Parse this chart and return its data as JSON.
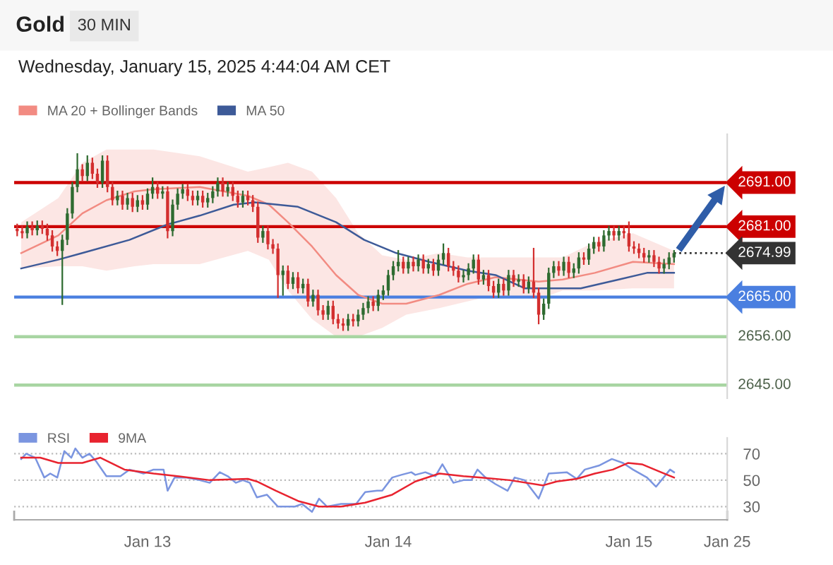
{
  "chart_data": [
    {
      "type": "candlestick",
      "title": "Gold",
      "subtitle": "Wednesday, January 15, 2025 4:44:04 AM CET",
      "annotations": [
        "30 MIN"
      ],
      "x": [
        "2025-01-12T11:00",
        "2025-01-12T11:30",
        "2025-01-12T12:00",
        "2025-01-12T12:30",
        "2025-01-12T13:00",
        "2025-01-12T13:30",
        "2025-01-12T14:00",
        "2025-01-12T14:30",
        "2025-01-12T15:00",
        "2025-01-12T15:30",
        "2025-01-12T16:00",
        "2025-01-12T16:30",
        "2025-01-12T17:00",
        "2025-01-12T17:30",
        "2025-01-12T18:00",
        "2025-01-12T18:30",
        "2025-01-12T19:00",
        "2025-01-12T19:30",
        "2025-01-12T20:00",
        "2025-01-12T20:30",
        "2025-01-12T21:00",
        "2025-01-12T21:30",
        "2025-01-12T22:00",
        "2025-01-12T22:30",
        "2025-01-12T23:00",
        "2025-01-12T23:30",
        "2025-01-13T00:00",
        "2025-01-13T00:30",
        "2025-01-13T01:00",
        "2025-01-13T01:30",
        "2025-01-13T02:00",
        "2025-01-13T02:30",
        "2025-01-13T03:00",
        "2025-01-13T03:30",
        "2025-01-13T04:00",
        "2025-01-13T04:30",
        "2025-01-13T05:00",
        "2025-01-13T05:30",
        "2025-01-13T06:00",
        "2025-01-13T06:30",
        "2025-01-13T07:00",
        "2025-01-13T07:30",
        "2025-01-13T08:00",
        "2025-01-13T08:30",
        "2025-01-13T09:00",
        "2025-01-13T09:30",
        "2025-01-13T10:00",
        "2025-01-13T10:30",
        "2025-01-13T11:00",
        "2025-01-13T11:30",
        "2025-01-13T12:00",
        "2025-01-13T12:30",
        "2025-01-13T13:00",
        "2025-01-13T13:30",
        "2025-01-13T14:00",
        "2025-01-13T14:30",
        "2025-01-13T15:00",
        "2025-01-13T15:30",
        "2025-01-13T16:00",
        "2025-01-13T16:30",
        "2025-01-13T17:00",
        "2025-01-13T17:30",
        "2025-01-13T18:00",
        "2025-01-13T18:30",
        "2025-01-13T19:00",
        "2025-01-13T19:30",
        "2025-01-13T20:00",
        "2025-01-13T20:30",
        "2025-01-13T21:00",
        "2025-01-13T21:30",
        "2025-01-13T22:00",
        "2025-01-13T22:30",
        "2025-01-13T23:00",
        "2025-01-13T23:30",
        "2025-01-14T00:00",
        "2025-01-14T00:30",
        "2025-01-14T01:00",
        "2025-01-14T01:30",
        "2025-01-14T02:00",
        "2025-01-14T02:30",
        "2025-01-14T03:00",
        "2025-01-14T03:30",
        "2025-01-14T04:00",
        "2025-01-14T04:30",
        "2025-01-14T05:00",
        "2025-01-14T05:30",
        "2025-01-14T06:00",
        "2025-01-14T06:30",
        "2025-01-14T07:00",
        "2025-01-14T07:30",
        "2025-01-14T08:00",
        "2025-01-14T08:30",
        "2025-01-14T09:00",
        "2025-01-14T09:30",
        "2025-01-14T10:00",
        "2025-01-14T10:30",
        "2025-01-14T11:00",
        "2025-01-14T11:30",
        "2025-01-14T12:00",
        "2025-01-14T12:30",
        "2025-01-14T13:00",
        "2025-01-14T13:30",
        "2025-01-14T14:00",
        "2025-01-14T14:30",
        "2025-01-14T15:00",
        "2025-01-14T15:30",
        "2025-01-14T16:00",
        "2025-01-14T16:30",
        "2025-01-14T17:00",
        "2025-01-14T17:30",
        "2025-01-14T18:00",
        "2025-01-14T18:30",
        "2025-01-14T19:00",
        "2025-01-14T19:30",
        "2025-01-14T20:00",
        "2025-01-14T20:30",
        "2025-01-14T21:00",
        "2025-01-14T21:30",
        "2025-01-14T22:00",
        "2025-01-14T22:30",
        "2025-01-14T23:00",
        "2025-01-14T23:30",
        "2025-01-15T00:00",
        "2025-01-15T00:30",
        "2025-01-15T01:00",
        "2025-01-15T01:30",
        "2025-01-15T02:00",
        "2025-01-15T02:30",
        "2025-01-15T03:00",
        "2025-01-15T03:30",
        "2025-01-15T04:00",
        "2025-01-15T04:30"
      ],
      "ohlc": [
        [
          2680.5,
          2681.5,
          2679.0,
          2680.0
        ],
        [
          2680.0,
          2681.0,
          2678.5,
          2679.5
        ],
        [
          2679.5,
          2682.0,
          2678.5,
          2681.0
        ],
        [
          2681.0,
          2682.0,
          2679.2,
          2680.2
        ],
        [
          2680.2,
          2682.2,
          2679.2,
          2681.2
        ],
        [
          2681.2,
          2682.2,
          2679.5,
          2680.5
        ],
        [
          2680.5,
          2681.5,
          2678.0,
          2679.0
        ],
        [
          2679.0,
          2680.0,
          2675.5,
          2676.5
        ],
        [
          2676.5,
          2677.5,
          2674.5,
          2675.5
        ],
        [
          2675.5,
          2679.0,
          2663.4,
          2678.0
        ],
        [
          2678.0,
          2685.0,
          2677.0,
          2684.0
        ],
        [
          2684.0,
          2691.0,
          2683.0,
          2690.0
        ],
        [
          2690.0,
          2697.5,
          2689.0,
          2694.0
        ],
        [
          2694.0,
          2695.0,
          2691.5,
          2692.5
        ],
        [
          2692.5,
          2697.0,
          2691.5,
          2695.5
        ],
        [
          2695.5,
          2696.5,
          2692.0,
          2693.0
        ],
        [
          2693.0,
          2694.0,
          2690.0,
          2691.0
        ],
        [
          2691.0,
          2697.0,
          2690.0,
          2696.0
        ],
        [
          2696.0,
          2697.0,
          2689.0,
          2690.0
        ],
        [
          2690.0,
          2691.0,
          2686.0,
          2687.0
        ],
        [
          2687.0,
          2689.0,
          2686.0,
          2688.0
        ],
        [
          2688.0,
          2689.0,
          2685.0,
          2686.0
        ],
        [
          2686.0,
          2688.5,
          2685.0,
          2687.5
        ],
        [
          2687.5,
          2688.5,
          2684.5,
          2685.5
        ],
        [
          2685.5,
          2688.0,
          2684.5,
          2687.0
        ],
        [
          2687.0,
          2688.0,
          2685.0,
          2686.0
        ],
        [
          2686.0,
          2689.5,
          2685.0,
          2688.5
        ],
        [
          2688.5,
          2692.0,
          2687.5,
          2690.0
        ],
        [
          2690.0,
          2691.0,
          2687.5,
          2688.5
        ],
        [
          2688.5,
          2690.0,
          2687.5,
          2689.0
        ],
        [
          2689.0,
          2690.0,
          2678.5,
          2680.0
        ],
        [
          2680.0,
          2687.0,
          2679.0,
          2686.0
        ],
        [
          2686.0,
          2689.5,
          2685.0,
          2688.5
        ],
        [
          2688.5,
          2690.5,
          2687.5,
          2689.5
        ],
        [
          2689.5,
          2690.5,
          2687.0,
          2688.0
        ],
        [
          2688.0,
          2689.0,
          2686.0,
          2687.0
        ],
        [
          2687.0,
          2689.0,
          2686.0,
          2688.0
        ],
        [
          2688.0,
          2689.0,
          2685.5,
          2686.5
        ],
        [
          2686.5,
          2688.5,
          2685.5,
          2687.5
        ],
        [
          2687.5,
          2690.0,
          2686.5,
          2689.0
        ],
        [
          2689.0,
          2692.0,
          2688.0,
          2691.0
        ],
        [
          2691.0,
          2692.0,
          2688.0,
          2689.0
        ],
        [
          2689.0,
          2691.0,
          2688.0,
          2690.0
        ],
        [
          2690.0,
          2691.0,
          2687.0,
          2688.0
        ],
        [
          2688.0,
          2689.0,
          2685.5,
          2686.5
        ],
        [
          2686.5,
          2689.0,
          2685.5,
          2688.0
        ],
        [
          2688.0,
          2689.0,
          2686.0,
          2687.0
        ],
        [
          2687.0,
          2688.0,
          2684.5,
          2685.5
        ],
        [
          2685.5,
          2686.5,
          2677.5,
          2678.5
        ],
        [
          2678.5,
          2681.0,
          2677.5,
          2680.0
        ],
        [
          2680.0,
          2681.0,
          2676.0,
          2677.0
        ],
        [
          2677.0,
          2678.0,
          2675.0,
          2676.0
        ],
        [
          2676.0,
          2677.0,
          2665.0,
          2670.0
        ],
        [
          2670.0,
          2672.0,
          2665.5,
          2671.0
        ],
        [
          2671.0,
          2672.0,
          2667.0,
          2668.0
        ],
        [
          2668.0,
          2670.5,
          2667.0,
          2669.5
        ],
        [
          2669.5,
          2670.5,
          2666.0,
          2667.0
        ],
        [
          2667.0,
          2669.0,
          2666.0,
          2668.0
        ],
        [
          2668.0,
          2669.0,
          2663.0,
          2664.0
        ],
        [
          2664.0,
          2666.5,
          2663.0,
          2665.5
        ],
        [
          2665.5,
          2666.5,
          2661.0,
          2662.0
        ],
        [
          2662.0,
          2663.0,
          2660.0,
          2661.0
        ],
        [
          2661.0,
          2664.0,
          2660.0,
          2663.0
        ],
        [
          2663.0,
          2664.0,
          2659.0,
          2660.0
        ],
        [
          2660.0,
          2661.0,
          2658.0,
          2659.0
        ],
        [
          2659.0,
          2660.0,
          2657.5,
          2658.5
        ],
        [
          2658.5,
          2661.0,
          2657.5,
          2660.0
        ],
        [
          2660.0,
          2661.0,
          2658.5,
          2659.5
        ],
        [
          2659.5,
          2662.0,
          2658.5,
          2661.0
        ],
        [
          2661.0,
          2663.5,
          2660.0,
          2662.5
        ],
        [
          2662.5,
          2665.0,
          2661.5,
          2664.0
        ],
        [
          2664.0,
          2665.0,
          2662.0,
          2663.0
        ],
        [
          2663.0,
          2666.5,
          2662.0,
          2665.5
        ],
        [
          2665.5,
          2667.5,
          2664.5,
          2666.5
        ],
        [
          2666.5,
          2671.0,
          2665.5,
          2670.0
        ],
        [
          2670.0,
          2673.0,
          2669.0,
          2672.0
        ],
        [
          2672.0,
          2675.5,
          2671.0,
          2673.0
        ],
        [
          2673.0,
          2674.0,
          2670.5,
          2671.5
        ],
        [
          2671.5,
          2674.0,
          2670.5,
          2673.0
        ],
        [
          2673.0,
          2674.0,
          2671.0,
          2672.0
        ],
        [
          2672.0,
          2674.5,
          2671.0,
          2673.5
        ],
        [
          2673.5,
          2674.5,
          2670.5,
          2671.5
        ],
        [
          2671.5,
          2673.5,
          2670.5,
          2672.5
        ],
        [
          2672.5,
          2673.5,
          2670.0,
          2671.0
        ],
        [
          2671.0,
          2674.5,
          2670.0,
          2673.5
        ],
        [
          2673.5,
          2677.0,
          2672.5,
          2675.0
        ],
        [
          2675.0,
          2676.0,
          2671.0,
          2672.0
        ],
        [
          2672.0,
          2673.0,
          2670.0,
          2671.0
        ],
        [
          2671.0,
          2672.0,
          2668.5,
          2669.5
        ],
        [
          2669.5,
          2671.0,
          2668.5,
          2670.0
        ],
        [
          2670.0,
          2672.5,
          2669.0,
          2671.5
        ],
        [
          2671.5,
          2674.5,
          2670.5,
          2673.5
        ],
        [
          2673.5,
          2674.5,
          2668.0,
          2669.0
        ],
        [
          2669.0,
          2671.0,
          2668.0,
          2670.0
        ],
        [
          2670.0,
          2671.0,
          2666.5,
          2667.5
        ],
        [
          2667.5,
          2668.5,
          2665.0,
          2666.0
        ],
        [
          2666.0,
          2669.0,
          2665.0,
          2668.0
        ],
        [
          2668.0,
          2669.0,
          2665.5,
          2666.5
        ],
        [
          2666.5,
          2671.0,
          2665.5,
          2670.0
        ],
        [
          2670.0,
          2671.0,
          2667.5,
          2668.5
        ],
        [
          2668.5,
          2670.0,
          2667.5,
          2669.0
        ],
        [
          2669.0,
          2670.0,
          2666.0,
          2667.0
        ],
        [
          2667.0,
          2669.5,
          2666.0,
          2668.5
        ],
        [
          2668.5,
          2676.0,
          2665.0,
          2666.0
        ],
        [
          2666.0,
          2667.0,
          2659.0,
          2661.0
        ],
        [
          2661.0,
          2664.5,
          2660.0,
          2663.5
        ],
        [
          2663.5,
          2671.5,
          2662.5,
          2670.5
        ],
        [
          2670.5,
          2673.0,
          2669.5,
          2672.0
        ],
        [
          2672.0,
          2673.0,
          2670.0,
          2671.0
        ],
        [
          2671.0,
          2674.0,
          2670.0,
          2673.0
        ],
        [
          2673.0,
          2674.0,
          2669.5,
          2670.5
        ],
        [
          2670.5,
          2672.5,
          2669.5,
          2671.5
        ],
        [
          2671.5,
          2675.0,
          2670.5,
          2674.0
        ],
        [
          2674.0,
          2675.0,
          2672.5,
          2673.5
        ],
        [
          2673.5,
          2677.0,
          2672.5,
          2676.0
        ],
        [
          2676.0,
          2678.5,
          2675.0,
          2677.5
        ],
        [
          2677.5,
          2678.5,
          2675.5,
          2676.5
        ],
        [
          2676.5,
          2680.0,
          2675.5,
          2679.0
        ],
        [
          2679.0,
          2681.0,
          2678.0,
          2680.0
        ],
        [
          2680.0,
          2681.0,
          2678.0,
          2679.0
        ],
        [
          2679.0,
          2681.0,
          2678.0,
          2680.0
        ],
        [
          2680.0,
          2681.0,
          2678.5,
          2679.5
        ],
        [
          2679.5,
          2682.0,
          2675.5,
          2676.5
        ],
        [
          2676.5,
          2677.5,
          2675.0,
          2676.0
        ],
        [
          2676.0,
          2677.0,
          2674.0,
          2675.0
        ],
        [
          2675.0,
          2676.0,
          2673.0,
          2674.0
        ],
        [
          2674.0,
          2675.5,
          2673.0,
          2674.5
        ],
        [
          2674.5,
          2675.5,
          2672.0,
          2673.0
        ],
        [
          2673.0,
          2674.0,
          2670.5,
          2671.5
        ],
        [
          2671.5,
          2673.5,
          2670.5,
          2672.5
        ],
        [
          2672.5,
          2675.0,
          2671.5,
          2674.0
        ],
        [
          2674.0,
          2675.5,
          2673.0,
          2674.99
        ]
      ],
      "colors": [
        "#d32f2f",
        "#d32f2f",
        "#2e6b30",
        "#d32f2f",
        "#2e6b30",
        "#d32f2f",
        "#d32f2f",
        "#d32f2f",
        "#d32f2f",
        "#2e6b30",
        "#2e6b30",
        "#2e6b30",
        "#2e6b30",
        "#d32f2f",
        "#2e6b30",
        "#d32f2f",
        "#d32f2f",
        "#2e6b30",
        "#d32f2f",
        "#d32f2f",
        "#2e6b30",
        "#d32f2f",
        "#2e6b30",
        "#d32f2f",
        "#2e6b30",
        "#d32f2f",
        "#2e6b30",
        "#2e6b30",
        "#d32f2f",
        "#2e6b30",
        "#d32f2f",
        "#2e6b30",
        "#2e6b30",
        "#2e6b30",
        "#d32f2f",
        "#d32f2f",
        "#2e6b30",
        "#d32f2f",
        "#2e6b30",
        "#2e6b30",
        "#2e6b30",
        "#d32f2f",
        "#2e6b30",
        "#d32f2f",
        "#d32f2f",
        "#2e6b30",
        "#d32f2f",
        "#d32f2f",
        "#d32f2f",
        "#2e6b30",
        "#d32f2f",
        "#d32f2f",
        "#d32f2f",
        "#2e6b30",
        "#d32f2f",
        "#2e6b30",
        "#d32f2f",
        "#2e6b30",
        "#d32f2f",
        "#2e6b30",
        "#d32f2f",
        "#d32f2f",
        "#2e6b30",
        "#d32f2f",
        "#d32f2f",
        "#d32f2f",
        "#2e6b30",
        "#d32f2f",
        "#2e6b30",
        "#2e6b30",
        "#2e6b30",
        "#d32f2f",
        "#2e6b30",
        "#2e6b30",
        "#2e6b30",
        "#2e6b30",
        "#2e6b30",
        "#d32f2f",
        "#2e6b30",
        "#d32f2f",
        "#2e6b30",
        "#d32f2f",
        "#2e6b30",
        "#d32f2f",
        "#2e6b30",
        "#2e6b30",
        "#d32f2f",
        "#d32f2f",
        "#d32f2f",
        "#2e6b30",
        "#2e6b30",
        "#2e6b30",
        "#d32f2f",
        "#2e6b30",
        "#d32f2f",
        "#d32f2f",
        "#2e6b30",
        "#d32f2f",
        "#2e6b30",
        "#d32f2f",
        "#2e6b30",
        "#d32f2f",
        "#2e6b30",
        "#d32f2f",
        "#d32f2f",
        "#2e6b30",
        "#2e6b30",
        "#2e6b30",
        "#d32f2f",
        "#2e6b30",
        "#d32f2f",
        "#2e6b30",
        "#2e6b30",
        "#d32f2f",
        "#2e6b30",
        "#2e6b30",
        "#d32f2f",
        "#2e6b30",
        "#2e6b30",
        "#d32f2f",
        "#2e6b30",
        "#d32f2f",
        "#d32f2f",
        "#d32f2f",
        "#d32f2f",
        "#d32f2f",
        "#2e6b30",
        "#d32f2f",
        "#d32f2f",
        "#2e6b30",
        "#2e6b30",
        "#2e6b30"
      ],
      "series": [
        {
          "name": "MA 20 + Bollinger Bands",
          "type": "line",
          "color": "#f28b82",
          "x": [
            "2025-01-12T11:24",
            "2025-01-12T15:06",
            "2025-01-12T17:30",
            "2025-01-12T19:54",
            "2025-01-12T22:42",
            "2025-01-13T00:36",
            "2025-01-13T05:12",
            "2025-01-13T10:00",
            "2025-01-13T12:06",
            "2025-01-13T14:00",
            "2025-01-13T16:24",
            "2025-01-13T18:48",
            "2025-01-13T21:00",
            "2025-01-13T23:24",
            "2025-01-14T01:48",
            "2025-01-14T05:06",
            "2025-01-14T07:54",
            "2025-01-14T10:42",
            "2025-01-14T15:00",
            "2025-01-14T17:24",
            "2025-01-14T20:36",
            "2025-01-15T00:24",
            "2025-01-15T04:30"
          ],
          "values": [
            2675,
            2679,
            2684,
            2687,
            2689,
            2689.5,
            2690,
            2688,
            2686,
            2682,
            2676.5,
            2670,
            2665.5,
            2663.5,
            2663.5,
            2665.5,
            2668,
            2669.5,
            2668.5,
            2669,
            2670.5,
            2673,
            2672.5
          ],
          "upper": [
            2682,
            2687.5,
            2695.5,
            2698.5,
            2698.5,
            2698.5,
            2697,
            2693.5,
            2694.5,
            2695.5,
            2693.5,
            2687.5,
            2679.5,
            2674.5,
            2673.5,
            2675,
            2674,
            2674,
            2674,
            2674,
            2677.5,
            2679.5,
            2675.5
          ],
          "lower": [
            2671.5,
            2672,
            2672,
            2671,
            2672,
            2672.5,
            2672.5,
            2675.5,
            2673.5,
            2666.5,
            2660,
            2656,
            2656,
            2658,
            2661,
            2662.5,
            2664,
            2665.5,
            2664.5,
            2666.5,
            2666.5,
            2667,
            2667
          ]
        },
        {
          "name": "MA 50",
          "type": "line",
          "color": "#3d5a98",
          "x": [
            "2025-01-12T11:24",
            "2025-01-12T15:06",
            "2025-01-12T17:30",
            "2025-01-12T22:12",
            "2025-01-13T02:00",
            "2025-01-13T05:12",
            "2025-01-13T08:36",
            "2025-01-13T10:42",
            "2025-01-13T15:00",
            "2025-01-13T18:48",
            "2025-01-13T21:36",
            "2025-01-14T00:48",
            "2025-01-14T04:06",
            "2025-01-14T07:54",
            "2025-01-14T10:42",
            "2025-01-14T13:36",
            "2025-01-14T16:24",
            "2025-01-14T19:12",
            "2025-01-14T23:00",
            "2025-01-15T01:48",
            "2025-01-15T04:30"
          ],
          "values": [
            2671.5,
            2673.5,
            2675,
            2678,
            2681.5,
            2683.5,
            2686,
            2686.5,
            2685.5,
            2682,
            2678,
            2675,
            2673,
            2671,
            2670,
            2667,
            2667,
            2667,
            2669,
            2670.5,
            2670.5
          ]
        }
      ],
      "ref_lines": [
        {
          "axis": "y",
          "value": 2691,
          "label": "2691.00",
          "color": "#cc0000",
          "line_style": "solid"
        },
        {
          "axis": "y",
          "value": 2681,
          "label": "2681.00",
          "color": "#cc0000",
          "line_style": "solid"
        },
        {
          "axis": "y",
          "value": 2674.99,
          "label": "2674.99",
          "color": "#333333",
          "line_style": "dotted"
        },
        {
          "axis": "y",
          "value": 2665,
          "label": "2665.00",
          "color": "#4a7fe0",
          "line_style": "solid"
        },
        {
          "axis": "y",
          "value": 2656,
          "label": "2656.00",
          "color": "#a8d5a2",
          "line_style": "solid"
        },
        {
          "axis": "y",
          "value": 2645,
          "label": "2645.00",
          "color": "#a8d5a2",
          "line_style": "solid"
        }
      ],
      "xlim": [
        "2025-01-12T10:42",
        "2025-01-15T09:48"
      ],
      "ylim": [
        2642,
        2702
      ],
      "legend": "top left"
    },
    {
      "type": "line",
      "series": [
        {
          "name": "RSI",
          "color": "#7b95e0",
          "x": [
            "2025-01-12T11:24",
            "2025-01-12T11:54",
            "2025-01-12T12:48",
            "2025-01-12T13:42",
            "2025-01-12T14:18",
            "2025-01-12T15:00",
            "2025-01-12T15:42",
            "2025-01-12T16:24",
            "2025-01-12T16:48",
            "2025-01-12T17:30",
            "2025-01-12T18:12",
            "2025-01-12T18:54",
            "2025-01-12T19:54",
            "2025-01-12T21:18",
            "2025-01-12T22:12",
            "2025-01-12T23:36",
            "2025-01-13T00:36",
            "2025-01-13T01:36",
            "2025-01-13T02:00",
            "2025-01-13T02:42",
            "2025-01-13T03:48",
            "2025-01-13T05:12",
            "2025-01-13T06:12",
            "2025-01-13T07:12",
            "2025-01-13T08:00",
            "2025-01-13T08:48",
            "2025-01-13T09:30",
            "2025-01-13T10:12",
            "2025-01-13T10:54",
            "2025-01-13T11:54",
            "2025-01-13T13:00",
            "2025-01-13T14:42",
            "2025-01-13T15:24",
            "2025-01-13T16:24",
            "2025-01-13T17:06",
            "2025-01-13T17:54",
            "2025-01-13T19:18",
            "2025-01-13T20:48",
            "2025-01-13T21:42",
            "2025-01-13T22:54",
            "2025-01-13T23:24",
            "2025-01-14T00:24",
            "2025-01-14T01:18",
            "2025-01-14T02:18",
            "2025-01-14T02:42",
            "2025-01-14T03:42",
            "2025-01-14T04:42",
            "2025-01-14T05:24",
            "2025-01-14T06:30",
            "2025-01-14T07:30",
            "2025-01-14T08:18",
            "2025-01-14T08:54",
            "2025-01-14T09:42",
            "2025-01-14T10:42",
            "2025-01-14T11:54",
            "2025-01-14T12:36",
            "2025-01-14T13:36",
            "2025-01-14T15:00",
            "2025-01-14T16:00",
            "2025-01-14T17:48",
            "2025-01-14T18:48",
            "2025-01-14T19:36",
            "2025-01-14T21:00",
            "2025-01-14T22:18",
            "2025-01-14T23:24",
            "2025-01-15T00:24",
            "2025-01-15T01:48",
            "2025-01-15T02:42",
            "2025-01-15T04:06",
            "2025-01-15T04:30"
          ],
          "values": [
            66,
            70,
            67,
            52,
            55,
            52,
            72,
            67,
            74,
            67,
            70,
            64,
            53,
            53,
            58,
            55,
            58,
            58,
            42,
            52,
            52,
            50,
            48,
            56,
            53,
            48,
            50,
            48,
            37,
            39,
            30,
            30,
            32,
            26,
            36,
            30,
            32,
            32,
            41,
            42,
            42,
            52,
            54,
            56,
            54,
            56,
            53,
            62,
            48,
            50,
            50,
            58,
            52,
            47,
            42,
            52,
            50,
            36,
            55,
            56,
            51,
            58,
            61,
            66,
            63,
            58,
            52,
            45,
            58,
            56
          ]
        },
        {
          "name": "9MA",
          "color": "#e8232f",
          "x": [
            "2025-01-12T11:24",
            "2025-01-12T13:18",
            "2025-01-12T15:06",
            "2025-01-12T17:30",
            "2025-01-12T19:18",
            "2025-01-12T21:42",
            "2025-01-13T00:36",
            "2025-01-13T03:00",
            "2025-01-13T06:12",
            "2025-01-13T10:00",
            "2025-01-13T10:54",
            "2025-01-13T12:48",
            "2025-01-13T15:06",
            "2025-01-13T17:06",
            "2025-01-13T19:18",
            "2025-01-13T21:42",
            "2025-01-14T00:24",
            "2025-01-14T02:42",
            "2025-01-14T05:06",
            "2025-01-14T07:30",
            "2025-01-14T09:18",
            "2025-01-14T12:06",
            "2025-01-14T15:24",
            "2025-01-14T16:48",
            "2025-01-14T18:48",
            "2025-01-14T20:36",
            "2025-01-14T22:24",
            "2025-01-14T23:54",
            "2025-01-15T01:18",
            "2025-01-15T03:12",
            "2025-01-15T04:30"
          ],
          "values": [
            67,
            67,
            63,
            63,
            67,
            58,
            55,
            53,
            50,
            51,
            49,
            42,
            34,
            30,
            30,
            33,
            39,
            49,
            55,
            53,
            52,
            50,
            46,
            49,
            51,
            55,
            58,
            63,
            62,
            56,
            52
          ]
        }
      ],
      "xlim": [
        "2025-01-12T10:42",
        "2025-01-15T09:48"
      ],
      "ylim": [
        20,
        82
      ],
      "yticks": [
        30,
        50,
        70
      ],
      "xticks": [
        {
          "value": "2025-01-13",
          "label": "Jan 13"
        },
        {
          "value": "2025-01-14",
          "label": "Jan 14"
        },
        {
          "value": "2025-01-15",
          "label": "Jan 15"
        },
        {
          "value": "2025-01-15T09:48",
          "label": "Jan 25"
        }
      ],
      "grid": "y",
      "legend": "top left"
    }
  ]
}
